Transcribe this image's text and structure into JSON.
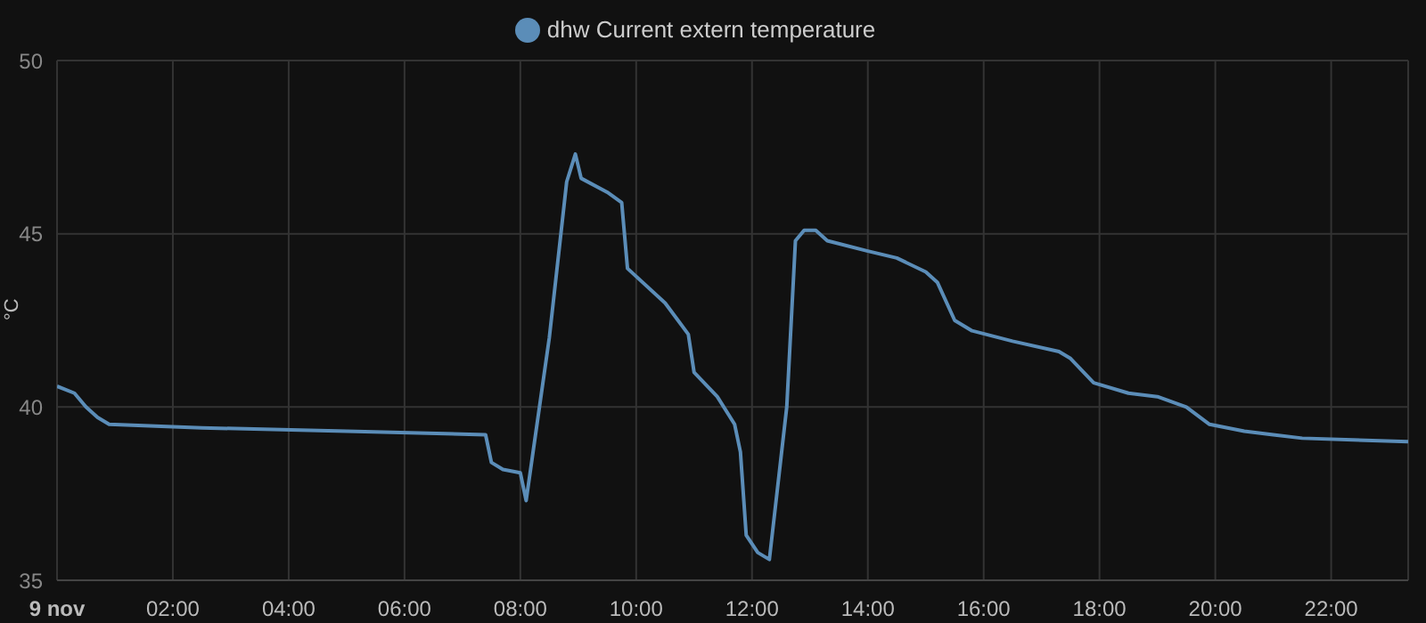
{
  "chart_data": {
    "type": "line",
    "ylabel": "°C",
    "legend": "top",
    "grid": true,
    "marker": "none",
    "line_style": "solid",
    "xlim": [
      0,
      23.33
    ],
    "ylim": [
      35,
      50
    ],
    "yticks": [
      35,
      40,
      45,
      50
    ],
    "xticks": [
      {
        "value": 0,
        "label": "9 nov"
      },
      {
        "value": 2,
        "label": "02:00"
      },
      {
        "value": 4,
        "label": "04:00"
      },
      {
        "value": 6,
        "label": "06:00"
      },
      {
        "value": 8,
        "label": "08:00"
      },
      {
        "value": 10,
        "label": "10:00"
      },
      {
        "value": 12,
        "label": "12:00"
      },
      {
        "value": 14,
        "label": "14:00"
      },
      {
        "value": 16,
        "label": "16:00"
      },
      {
        "value": 18,
        "label": "18:00"
      },
      {
        "value": 20,
        "label": "20:00"
      },
      {
        "value": 22,
        "label": "22:00"
      }
    ],
    "series": [
      {
        "name": "dhw Current extern temperature",
        "color": "#5b8db8",
        "x": [
          0,
          0.3,
          0.5,
          0.7,
          0.9,
          2.5,
          5,
          7.4,
          7.5,
          7.7,
          8.0,
          8.1,
          8.5,
          8.8,
          8.95,
          9.05,
          9.5,
          9.75,
          9.85,
          10.5,
          10.9,
          11.0,
          11.4,
          11.7,
          11.8,
          11.9,
          12.1,
          12.3,
          12.6,
          12.75,
          12.9,
          13.1,
          13.3,
          14,
          14.5,
          15,
          15.2,
          15.5,
          15.8,
          16.5,
          17.3,
          17.5,
          17.9,
          18.5,
          19,
          19.5,
          19.9,
          20.5,
          21,
          21.5,
          23.33
        ],
        "values": [
          40.6,
          40.4,
          40.0,
          39.7,
          39.5,
          39.4,
          39.3,
          39.2,
          38.4,
          38.2,
          38.1,
          37.3,
          42,
          46.5,
          47.3,
          46.6,
          46.2,
          45.9,
          44.0,
          43.0,
          42.1,
          41.0,
          40.3,
          39.5,
          38.7,
          36.3,
          35.8,
          35.6,
          40,
          44.8,
          45.1,
          45.1,
          44.8,
          44.5,
          44.3,
          43.9,
          43.6,
          42.5,
          42.2,
          41.9,
          41.6,
          41.4,
          40.7,
          40.4,
          40.3,
          40.0,
          39.5,
          39.3,
          39.2,
          39.1,
          39.0
        ]
      }
    ]
  }
}
